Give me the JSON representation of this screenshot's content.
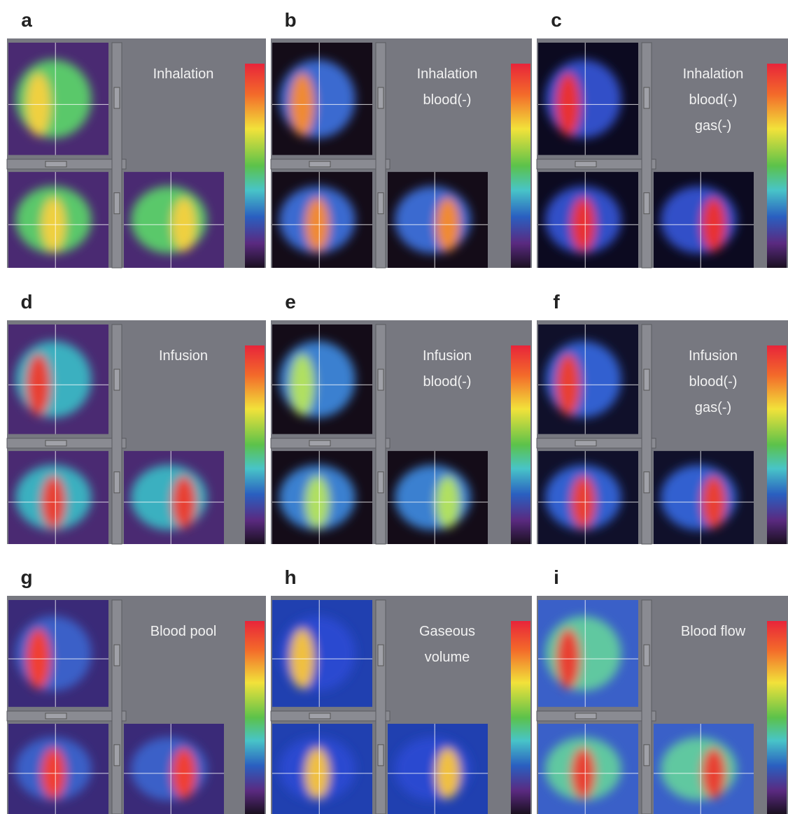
{
  "panels": [
    {
      "letter": "a",
      "label": [
        "Inhalation"
      ]
    },
    {
      "letter": "b",
      "label": [
        "Inhalation",
        "blood(-)"
      ]
    },
    {
      "letter": "c",
      "label": [
        "Inhalation",
        "blood(-)",
        "gas(-)"
      ]
    },
    {
      "letter": "d",
      "label": [
        "Infusion"
      ]
    },
    {
      "letter": "e",
      "label": [
        "Infusion",
        "blood(-)"
      ]
    },
    {
      "letter": "f",
      "label": [
        "Infusion",
        "blood(-)",
        "gas(-)"
      ]
    },
    {
      "letter": "g",
      "label": [
        "Blood pool"
      ]
    },
    {
      "letter": "h",
      "label": [
        "Gaseous",
        "volume"
      ]
    },
    {
      "letter": "i",
      "label": [
        "Blood flow"
      ]
    }
  ]
}
